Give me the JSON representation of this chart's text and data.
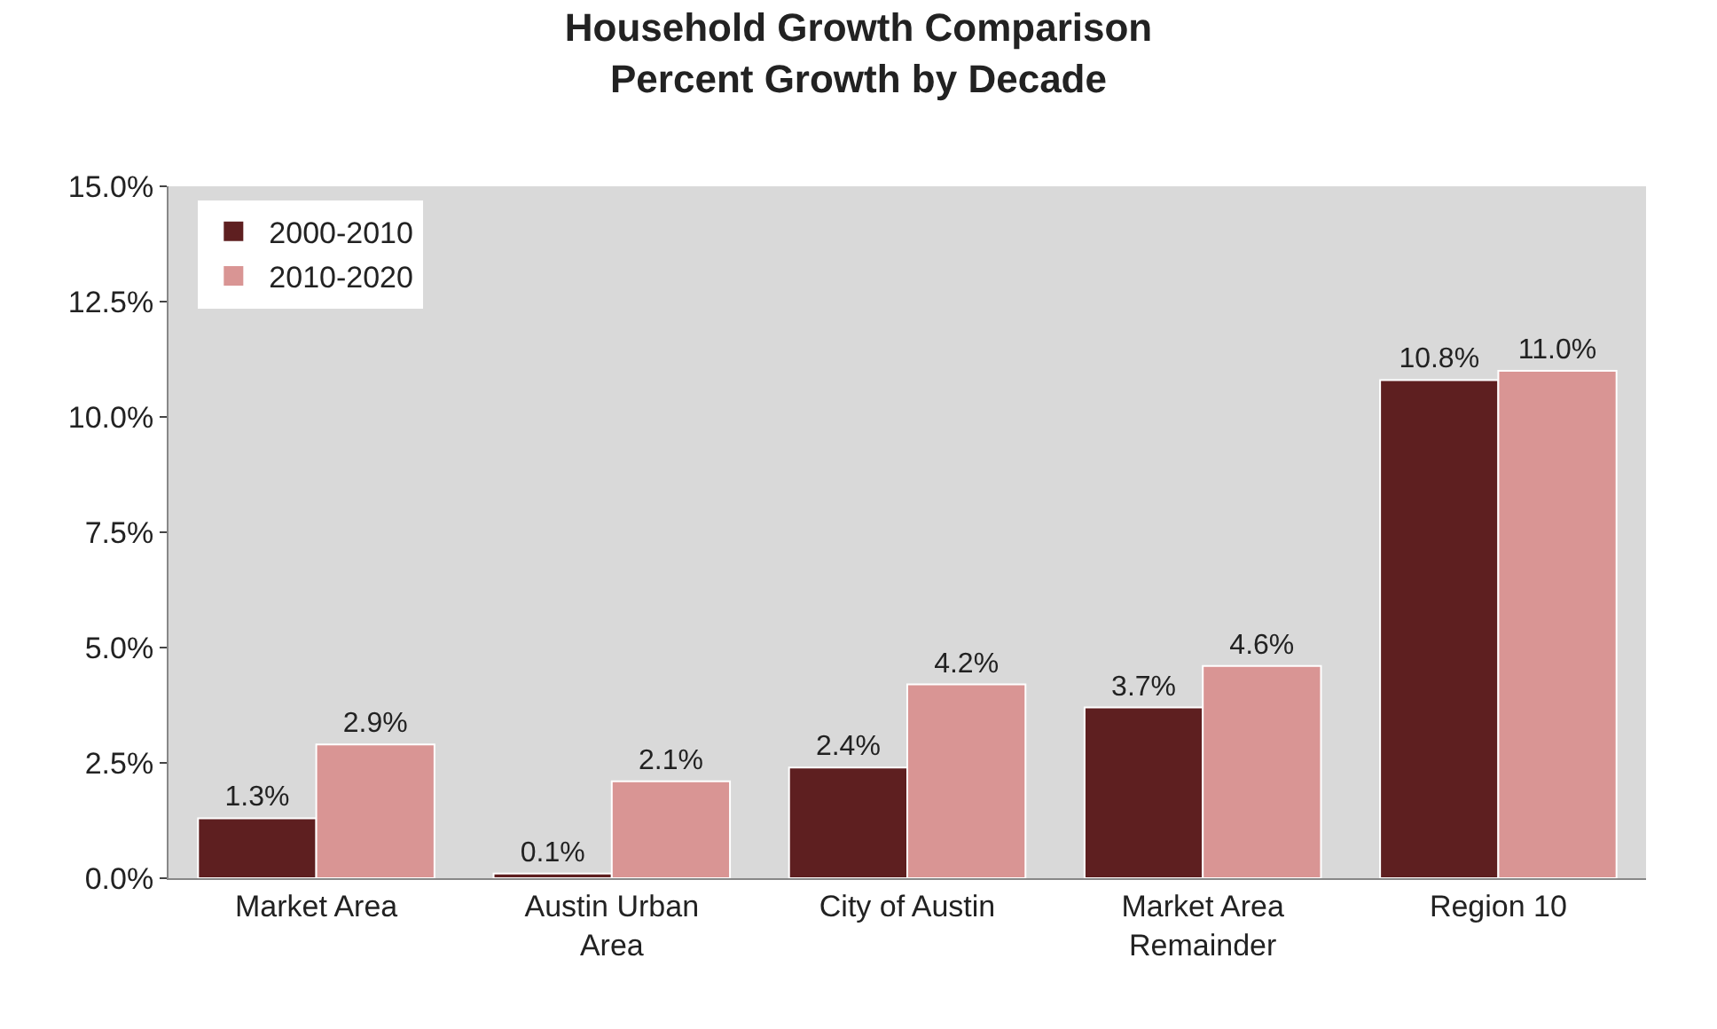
{
  "chart_data": {
    "type": "bar",
    "title": "Household Growth Comparison",
    "subtitle": "Percent Growth by Decade",
    "categories": [
      "Market Area",
      "Austin Urban\nArea",
      "City of Austin",
      "Market Area\nRemainder",
      "Region 10"
    ],
    "series": [
      {
        "name": "2000-2010",
        "color": "#5e1f20",
        "values": [
          1.3,
          0.1,
          2.4,
          3.7,
          10.8
        ],
        "value_labels": [
          "1.3%",
          "0.1%",
          "2.4%",
          "3.7%",
          "10.8%"
        ]
      },
      {
        "name": "2010-2020",
        "color": "#d99594",
        "values": [
          2.9,
          2.1,
          4.2,
          4.6,
          11.0
        ],
        "value_labels": [
          "2.9%",
          "2.1%",
          "4.2%",
          "4.6%",
          "11.0%"
        ]
      }
    ],
    "ylim": [
      0,
      15
    ],
    "yticks": [
      {
        "value": 0,
        "label": "0.0%"
      },
      {
        "value": 2.5,
        "label": "2.5%"
      },
      {
        "value": 5,
        "label": "5.0%"
      },
      {
        "value": 7.5,
        "label": "7.5%"
      },
      {
        "value": 10,
        "label": "10.0%"
      },
      {
        "value": 12.5,
        "label": "12.5%"
      },
      {
        "value": 15,
        "label": "15.0%"
      }
    ],
    "grid": false,
    "legend": "top left"
  }
}
